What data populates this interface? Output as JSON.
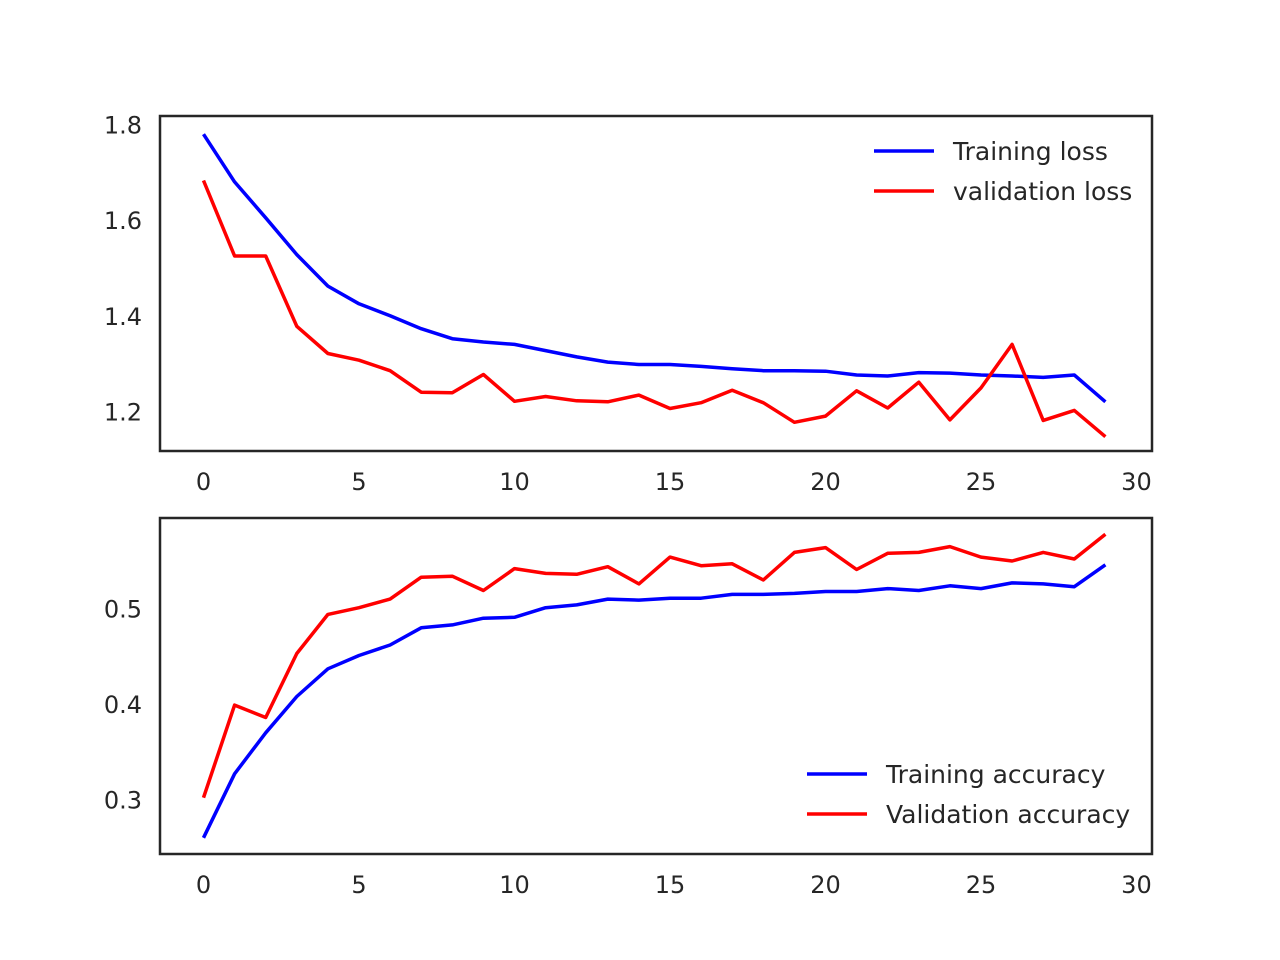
{
  "chart_data": [
    {
      "type": "line",
      "title": "",
      "xlabel": "",
      "ylabel": "",
      "xlim": [
        -1.4,
        30.5
      ],
      "ylim": [
        1.117,
        1.818
      ],
      "xticks": [
        0,
        5,
        10,
        15,
        20,
        25,
        30
      ],
      "yticks": [
        1.2,
        1.4,
        1.6,
        1.8
      ],
      "ytick_labels": [
        "1.2",
        "1.4",
        "1.6",
        "1.8"
      ],
      "grid": false,
      "legend": "top-right",
      "x": [
        0,
        1,
        2,
        3,
        4,
        5,
        6,
        7,
        8,
        9,
        10,
        11,
        12,
        13,
        14,
        15,
        16,
        17,
        18,
        19,
        20,
        21,
        22,
        23,
        24,
        25,
        26,
        27,
        28,
        29
      ],
      "series": [
        {
          "name": "Training loss",
          "color": "#0000ff",
          "values": [
            1.78,
            1.68,
            1.605,
            1.528,
            1.462,
            1.425,
            1.4,
            1.373,
            1.352,
            1.345,
            1.34,
            1.327,
            1.314,
            1.303,
            1.298,
            1.298,
            1.294,
            1.289,
            1.285,
            1.285,
            1.284,
            1.276,
            1.274,
            1.281,
            1.28,
            1.276,
            1.274,
            1.271,
            1.276,
            1.22
          ]
        },
        {
          "name": "validation loss",
          "color": "#ff0000",
          "values": [
            1.683,
            1.525,
            1.525,
            1.378,
            1.321,
            1.307,
            1.285,
            1.24,
            1.239,
            1.277,
            1.221,
            1.231,
            1.222,
            1.22,
            1.234,
            1.206,
            1.218,
            1.244,
            1.218,
            1.177,
            1.19,
            1.243,
            1.207,
            1.261,
            1.182,
            1.249,
            1.34,
            1.181,
            1.202,
            1.147
          ]
        }
      ]
    },
    {
      "type": "line",
      "title": "",
      "xlabel": "",
      "ylabel": "",
      "xlim": [
        -1.4,
        30.5
      ],
      "ylim": [
        0.243,
        0.595
      ],
      "xticks": [
        0,
        5,
        10,
        15,
        20,
        25,
        30
      ],
      "yticks": [
        0.3,
        0.4,
        0.5
      ],
      "ytick_labels": [
        "0.3",
        "0.4",
        "0.5"
      ],
      "grid": false,
      "legend": "bottom-right",
      "x": [
        0,
        1,
        2,
        3,
        4,
        5,
        6,
        7,
        8,
        9,
        10,
        11,
        12,
        13,
        14,
        15,
        16,
        17,
        18,
        19,
        20,
        21,
        22,
        23,
        24,
        25,
        26,
        27,
        28,
        29
      ],
      "series": [
        {
          "name": "Training accuracy",
          "color": "#0000ff",
          "values": [
            0.26,
            0.327,
            0.37,
            0.408,
            0.437,
            0.451,
            0.462,
            0.48,
            0.483,
            0.49,
            0.491,
            0.501,
            0.504,
            0.51,
            0.509,
            0.511,
            0.511,
            0.515,
            0.515,
            0.516,
            0.518,
            0.518,
            0.521,
            0.519,
            0.524,
            0.521,
            0.527,
            0.526,
            0.523,
            0.546
          ]
        },
        {
          "name": "Validation accuracy",
          "color": "#ff0000",
          "values": [
            0.302,
            0.399,
            0.386,
            0.453,
            0.494,
            0.501,
            0.51,
            0.533,
            0.534,
            0.519,
            0.542,
            0.537,
            0.536,
            0.544,
            0.526,
            0.554,
            0.545,
            0.547,
            0.53,
            0.559,
            0.564,
            0.541,
            0.558,
            0.559,
            0.565,
            0.554,
            0.55,
            0.559,
            0.552,
            0.578
          ]
        }
      ]
    }
  ]
}
